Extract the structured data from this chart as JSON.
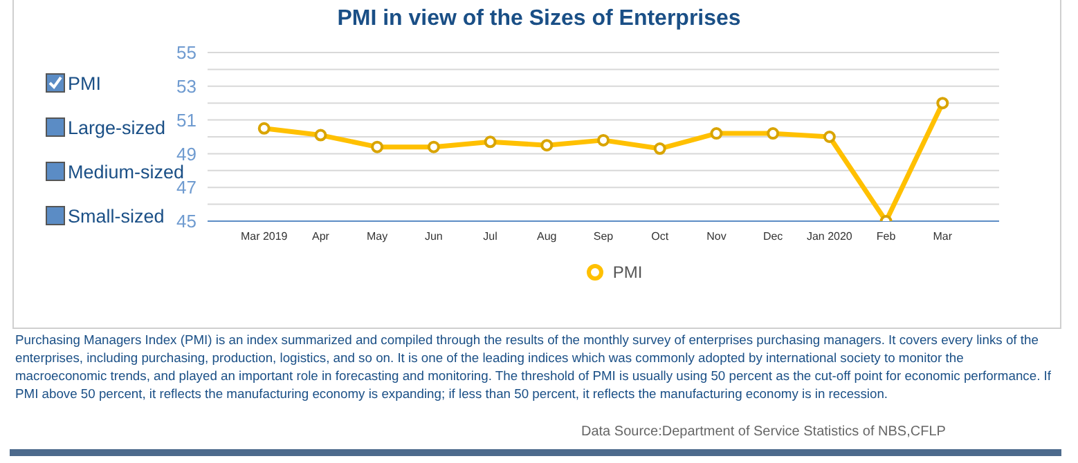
{
  "chart_data": {
    "type": "line",
    "title": "PMI in view of the Sizes of Enterprises",
    "categories": [
      "Mar 2019",
      "Apr",
      "May",
      "Jun",
      "Jul",
      "Aug",
      "Sep",
      "Oct",
      "Nov",
      "Dec",
      "Jan 2020",
      "Feb",
      "Mar"
    ],
    "series": [
      {
        "name": "PMI",
        "color": "#ffc000",
        "values": [
          50.5,
          50.1,
          49.4,
          49.4,
          49.7,
          49.5,
          49.8,
          49.3,
          50.2,
          50.2,
          50.0,
          45,
          52.0
        ]
      }
    ],
    "ylim": [
      45,
      55
    ],
    "yticks": [
      45,
      {
        "value": 46,
        "label": null
      },
      47,
      {
        "value": 48,
        "label": null
      },
      49,
      {
        "value": 50,
        "label": null
      },
      51,
      {
        "value": 52,
        "label": null
      },
      53,
      {
        "value": 54,
        "label": null
      },
      55
    ],
    "grid": "y",
    "legend": "bottom",
    "marker": "circle",
    "line_style": "solid",
    "annotations": [
      "PMI",
      "Large-sized",
      "Medium-sized",
      "Small-sized",
      "Purchasing Managers Index (PMI) is an index summarized and compiled through the results of the monthly survey of enterprises purchasing managers. It covers every links of the enterprises, including purchasing, production, logistics, and so on. It is one of the leading indices which was commonly adopted by international society to monitor the macroeconomic trends, and played an important role in forecasting and monitoring. The threshold of PMI is usually using 50 percent as the cut-off point for economic performance. If PMI above 50 percent, it reflects the manufacturing economy is expanding; if less than 50 percent, it reflects the manufacturing economy is in recession.",
      "Data Source:Department of Service Statistics of NBS,CFLP"
    ]
  }
}
